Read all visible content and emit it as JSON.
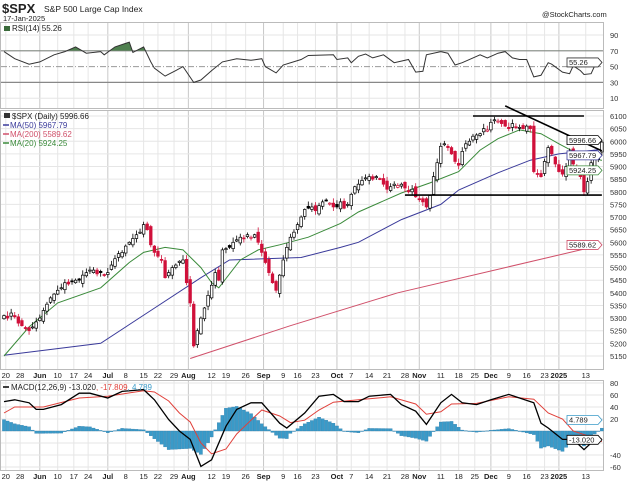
{
  "header": {
    "symbol": "$SPX",
    "name": "S&P 500 Large Cap Index",
    "date": "17-Jan-2025",
    "watermark": "@StockCharts.com"
  },
  "rsi": {
    "label": "RSI(14) 55.26",
    "value_tag": "55.26",
    "axis_ticks": [
      90,
      70,
      50,
      30,
      10
    ],
    "points": [
      [
        0,
        69
      ],
      [
        3,
        60
      ],
      [
        7,
        53
      ],
      [
        10,
        56
      ],
      [
        14,
        65
      ],
      [
        17,
        69
      ],
      [
        20,
        75
      ],
      [
        23,
        67
      ],
      [
        27,
        69
      ],
      [
        28,
        65
      ],
      [
        31,
        75
      ],
      [
        35,
        81
      ],
      [
        36,
        68
      ],
      [
        39,
        75
      ],
      [
        41,
        56
      ],
      [
        42,
        48
      ],
      [
        45,
        38
      ],
      [
        48,
        45
      ],
      [
        50,
        50
      ],
      [
        53,
        30
      ],
      [
        55,
        33
      ],
      [
        58,
        45
      ],
      [
        61,
        56
      ],
      [
        65,
        60
      ],
      [
        69,
        58
      ],
      [
        72,
        60
      ],
      [
        73,
        50
      ],
      [
        76,
        42
      ],
      [
        78,
        52
      ],
      [
        83,
        59
      ],
      [
        85,
        64
      ],
      [
        92,
        65
      ],
      [
        93,
        59
      ],
      [
        96,
        61
      ],
      [
        97,
        55
      ],
      [
        99,
        63
      ],
      [
        101,
        66
      ],
      [
        103,
        61
      ],
      [
        106,
        65
      ],
      [
        109,
        55
      ],
      [
        113,
        59
      ],
      [
        115,
        43
      ],
      [
        117,
        44
      ],
      [
        118,
        65
      ],
      [
        122,
        69
      ],
      [
        124,
        67
      ],
      [
        126,
        52
      ],
      [
        128,
        55
      ],
      [
        131,
        61
      ],
      [
        133,
        65
      ],
      [
        135,
        61
      ],
      [
        138,
        67
      ],
      [
        140,
        69
      ],
      [
        142,
        61
      ],
      [
        144,
        59
      ],
      [
        146,
        59
      ],
      [
        148,
        37
      ],
      [
        150,
        39
      ],
      [
        152,
        55
      ],
      [
        153,
        53
      ],
      [
        156,
        43
      ],
      [
        158,
        41
      ],
      [
        159,
        51
      ],
      [
        161,
        45
      ],
      [
        162,
        40
      ],
      [
        164,
        41
      ],
      [
        165,
        51
      ],
      [
        167,
        55.26
      ]
    ]
  },
  "price": {
    "legend": {
      "main": "$SPX (Daily) 5996.66",
      "ma50": "MA(50) 5967.79",
      "ma200": "MA(200) 5589.62",
      "ma20": "MA(20) 5924.25"
    },
    "tags": {
      "last": "5996.66",
      "ma50": "5967.79",
      "ma20": "5924.25",
      "ma200": "5589.62"
    },
    "colors": {
      "ma50": "#3a3a9a",
      "ma200": "#d0506a",
      "ma20": "#3a8a3a",
      "up": "#000000",
      "down": "#d0103a"
    },
    "axis_ticks": [
      6100,
      6050,
      6000,
      5950,
      5900,
      5850,
      5800,
      5750,
      5700,
      5650,
      5600,
      5550,
      5500,
      5450,
      5400,
      5350,
      5300,
      5250,
      5200,
      5150
    ],
    "closes": [
      5310,
      5300,
      5320,
      5305,
      5280,
      5270,
      5260,
      5250,
      5265,
      5285,
      5300,
      5330,
      5355,
      5380,
      5395,
      5410,
      5420,
      5440,
      5435,
      5445,
      5450,
      5450,
      5470,
      5480,
      5490,
      5490,
      5475,
      5480,
      5470,
      5480,
      5510,
      5535,
      5555,
      5560,
      5585,
      5600,
      5615,
      5630,
      5640,
      5670,
      5650,
      5590,
      5560,
      5545,
      5530,
      5460,
      5480,
      5500,
      5510,
      5525,
      5530,
      5440,
      5360,
      5190,
      5250,
      5300,
      5340,
      5390,
      5430,
      5480,
      5450,
      5570,
      5575,
      5580,
      5600,
      5610,
      5620,
      5615,
      5630,
      5620,
      5630,
      5600,
      5560,
      5520,
      5480,
      5440,
      5410,
      5470,
      5530,
      5580,
      5620,
      5640,
      5670,
      5700,
      5730,
      5735,
      5740,
      5725,
      5745,
      5760,
      5765,
      5755,
      5740,
      5740,
      5760,
      5735,
      5750,
      5790,
      5820,
      5830,
      5845,
      5855,
      5860,
      5850,
      5860,
      5850,
      5830,
      5810,
      5820,
      5830,
      5825,
      5830,
      5815,
      5800,
      5810,
      5780,
      5770,
      5760,
      5740,
      5785,
      5860,
      5915,
      5980,
      5990,
      5975,
      5950,
      5920,
      5905,
      5960,
      5990,
      6000,
      6020,
      6025,
      6030,
      6050,
      6045,
      6075,
      6085,
      6080,
      6070,
      6060,
      6050,
      6070,
      6055,
      6055,
      6050,
      6060,
      6050,
      5880,
      5870,
      5860,
      5920,
      5975,
      5950,
      5910,
      5880,
      5870,
      5900,
      5960,
      5910,
      5880,
      5860,
      5800,
      5840,
      5915,
      5930,
      5950,
      5996.66
    ],
    "ma50": [
      [
        0,
        5153
      ],
      [
        27,
        5200
      ],
      [
        41,
        5330
      ],
      [
        55,
        5460
      ],
      [
        63,
        5530
      ],
      [
        83,
        5540
      ],
      [
        94,
        5580
      ],
      [
        99,
        5600
      ],
      [
        111,
        5690
      ],
      [
        122,
        5750
      ],
      [
        127,
        5807
      ],
      [
        138,
        5875
      ],
      [
        147,
        5925
      ],
      [
        155,
        5950
      ],
      [
        167,
        5967.79
      ]
    ],
    "ma20": [
      [
        0,
        5150
      ],
      [
        7,
        5265
      ],
      [
        15,
        5360
      ],
      [
        27,
        5420
      ],
      [
        35,
        5520
      ],
      [
        39,
        5560
      ],
      [
        45,
        5580
      ],
      [
        50,
        5570
      ],
      [
        55,
        5500
      ],
      [
        58,
        5440
      ],
      [
        60,
        5420
      ],
      [
        66,
        5530
      ],
      [
        71,
        5570
      ],
      [
        77,
        5590
      ],
      [
        85,
        5620
      ],
      [
        94,
        5675
      ],
      [
        99,
        5720
      ],
      [
        111,
        5795
      ],
      [
        119,
        5835
      ],
      [
        127,
        5880
      ],
      [
        133,
        5965
      ],
      [
        138,
        6010
      ],
      [
        144,
        6045
      ],
      [
        150,
        6030
      ],
      [
        155,
        5990
      ],
      [
        161,
        5945
      ],
      [
        167,
        5924.25
      ]
    ],
    "ma200": [
      [
        52,
        5140
      ],
      [
        80,
        5270
      ],
      [
        110,
        5400
      ],
      [
        140,
        5500
      ],
      [
        167,
        5589.62
      ]
    ],
    "annotations": [
      {
        "name": "resistance-line",
        "from": [
          131,
          6100
        ],
        "to": [
          162,
          6100
        ]
      },
      {
        "name": "support-line",
        "from": [
          112,
          5787
        ],
        "to": [
          167,
          5787
        ]
      },
      {
        "name": "descending-trendline",
        "from": [
          140,
          6140
        ],
        "to": [
          167,
          5962
        ]
      }
    ]
  },
  "x_axis": {
    "labels": [
      {
        "text": "20",
        "i": 0.5
      },
      {
        "text": "28",
        "i": 4.5
      },
      {
        "text": "Jun",
        "i": 10,
        "month": true
      },
      {
        "text": "10",
        "i": 15
      },
      {
        "text": "17",
        "i": 19.5
      },
      {
        "text": "24",
        "i": 23.5
      },
      {
        "text": "Jul",
        "i": 29,
        "month": true
      },
      {
        "text": "8",
        "i": 34
      },
      {
        "text": "15",
        "i": 39
      },
      {
        "text": "22",
        "i": 43
      },
      {
        "text": "29",
        "i": 47.5
      },
      {
        "text": "Aug",
        "i": 51.5,
        "month": true
      },
      {
        "text": "12",
        "i": 58
      },
      {
        "text": "19",
        "i": 62
      },
      {
        "text": "26",
        "i": 67.5
      },
      {
        "text": "Sep",
        "i": 72.5,
        "month": true
      },
      {
        "text": "9",
        "i": 78
      },
      {
        "text": "16",
        "i": 82
      },
      {
        "text": "23",
        "i": 87
      },
      {
        "text": "Oct",
        "i": 93,
        "month": true
      },
      {
        "text": "7",
        "i": 97
      },
      {
        "text": "14",
        "i": 102
      },
      {
        "text": "21",
        "i": 107
      },
      {
        "text": "28",
        "i": 112
      },
      {
        "text": "Nov",
        "i": 116,
        "month": true
      },
      {
        "text": "11",
        "i": 122
      },
      {
        "text": "18",
        "i": 127
      },
      {
        "text": "25",
        "i": 131.5
      },
      {
        "text": "Dec",
        "i": 136,
        "month": true
      },
      {
        "text": "9",
        "i": 141
      },
      {
        "text": "16",
        "i": 146
      },
      {
        "text": "23",
        "i": 151
      },
      {
        "text": "2025",
        "i": 155,
        "month": true
      },
      {
        "text": "13",
        "i": 162.5
      }
    ]
  },
  "macd": {
    "label_main": "MACD(12,26,9) -13.020",
    "label_signal": ", -17.809",
    "label_hist": ", 4.789",
    "tags": {
      "hist": "4.789",
      "macd": "-13.020"
    },
    "colors": {
      "macd": "#000000",
      "signal": "#e0403a",
      "hist": "#3a9ac8"
    },
    "axis_ticks": [
      80,
      60,
      40,
      20,
      -40,
      -60
    ],
    "macd_line": [
      [
        0,
        49
      ],
      [
        3,
        52
      ],
      [
        7,
        47
      ],
      [
        9,
        36
      ],
      [
        11,
        36
      ],
      [
        16,
        44
      ],
      [
        21,
        63
      ],
      [
        24,
        63
      ],
      [
        29,
        55
      ],
      [
        33,
        66
      ],
      [
        39,
        69
      ],
      [
        42,
        52
      ],
      [
        46,
        19
      ],
      [
        49,
        0
      ],
      [
        52,
        -14
      ],
      [
        55,
        -59
      ],
      [
        58,
        -48
      ],
      [
        62,
        8
      ],
      [
        65,
        36
      ],
      [
        69,
        47
      ],
      [
        72,
        47
      ],
      [
        77,
        13
      ],
      [
        79,
        5
      ],
      [
        84,
        30
      ],
      [
        88,
        58
      ],
      [
        92,
        61
      ],
      [
        95,
        49
      ],
      [
        99,
        49
      ],
      [
        102,
        58
      ],
      [
        108,
        61
      ],
      [
        111,
        44
      ],
      [
        115,
        33
      ],
      [
        118,
        11
      ],
      [
        122,
        47
      ],
      [
        125,
        61
      ],
      [
        128,
        47
      ],
      [
        132,
        44
      ],
      [
        136,
        52
      ],
      [
        141,
        61
      ],
      [
        144,
        55
      ],
      [
        148,
        47
      ],
      [
        150,
        13
      ],
      [
        152,
        5
      ],
      [
        156,
        -14
      ],
      [
        159,
        -14
      ],
      [
        162,
        -31
      ],
      [
        164,
        -20
      ],
      [
        167,
        -13.02
      ]
    ],
    "signal_line": [
      [
        0,
        30
      ],
      [
        3,
        40
      ],
      [
        11,
        40
      ],
      [
        21,
        55
      ],
      [
        29,
        58
      ],
      [
        39,
        67
      ],
      [
        42,
        65
      ],
      [
        46,
        50
      ],
      [
        49,
        30
      ],
      [
        52,
        15
      ],
      [
        55,
        -20
      ],
      [
        58,
        -38
      ],
      [
        62,
        -30
      ],
      [
        65,
        -5
      ],
      [
        69,
        18
      ],
      [
        72,
        35
      ],
      [
        77,
        25
      ],
      [
        80,
        14
      ],
      [
        84,
        18
      ],
      [
        88,
        35
      ],
      [
        92,
        48
      ],
      [
        99,
        52
      ],
      [
        108,
        57
      ],
      [
        115,
        45
      ],
      [
        118,
        28
      ],
      [
        122,
        32
      ],
      [
        125,
        45
      ],
      [
        132,
        46
      ],
      [
        141,
        57
      ],
      [
        148,
        53
      ],
      [
        152,
        30
      ],
      [
        156,
        20
      ],
      [
        159,
        0
      ],
      [
        164,
        -10
      ],
      [
        167,
        -17.809
      ]
    ]
  }
}
